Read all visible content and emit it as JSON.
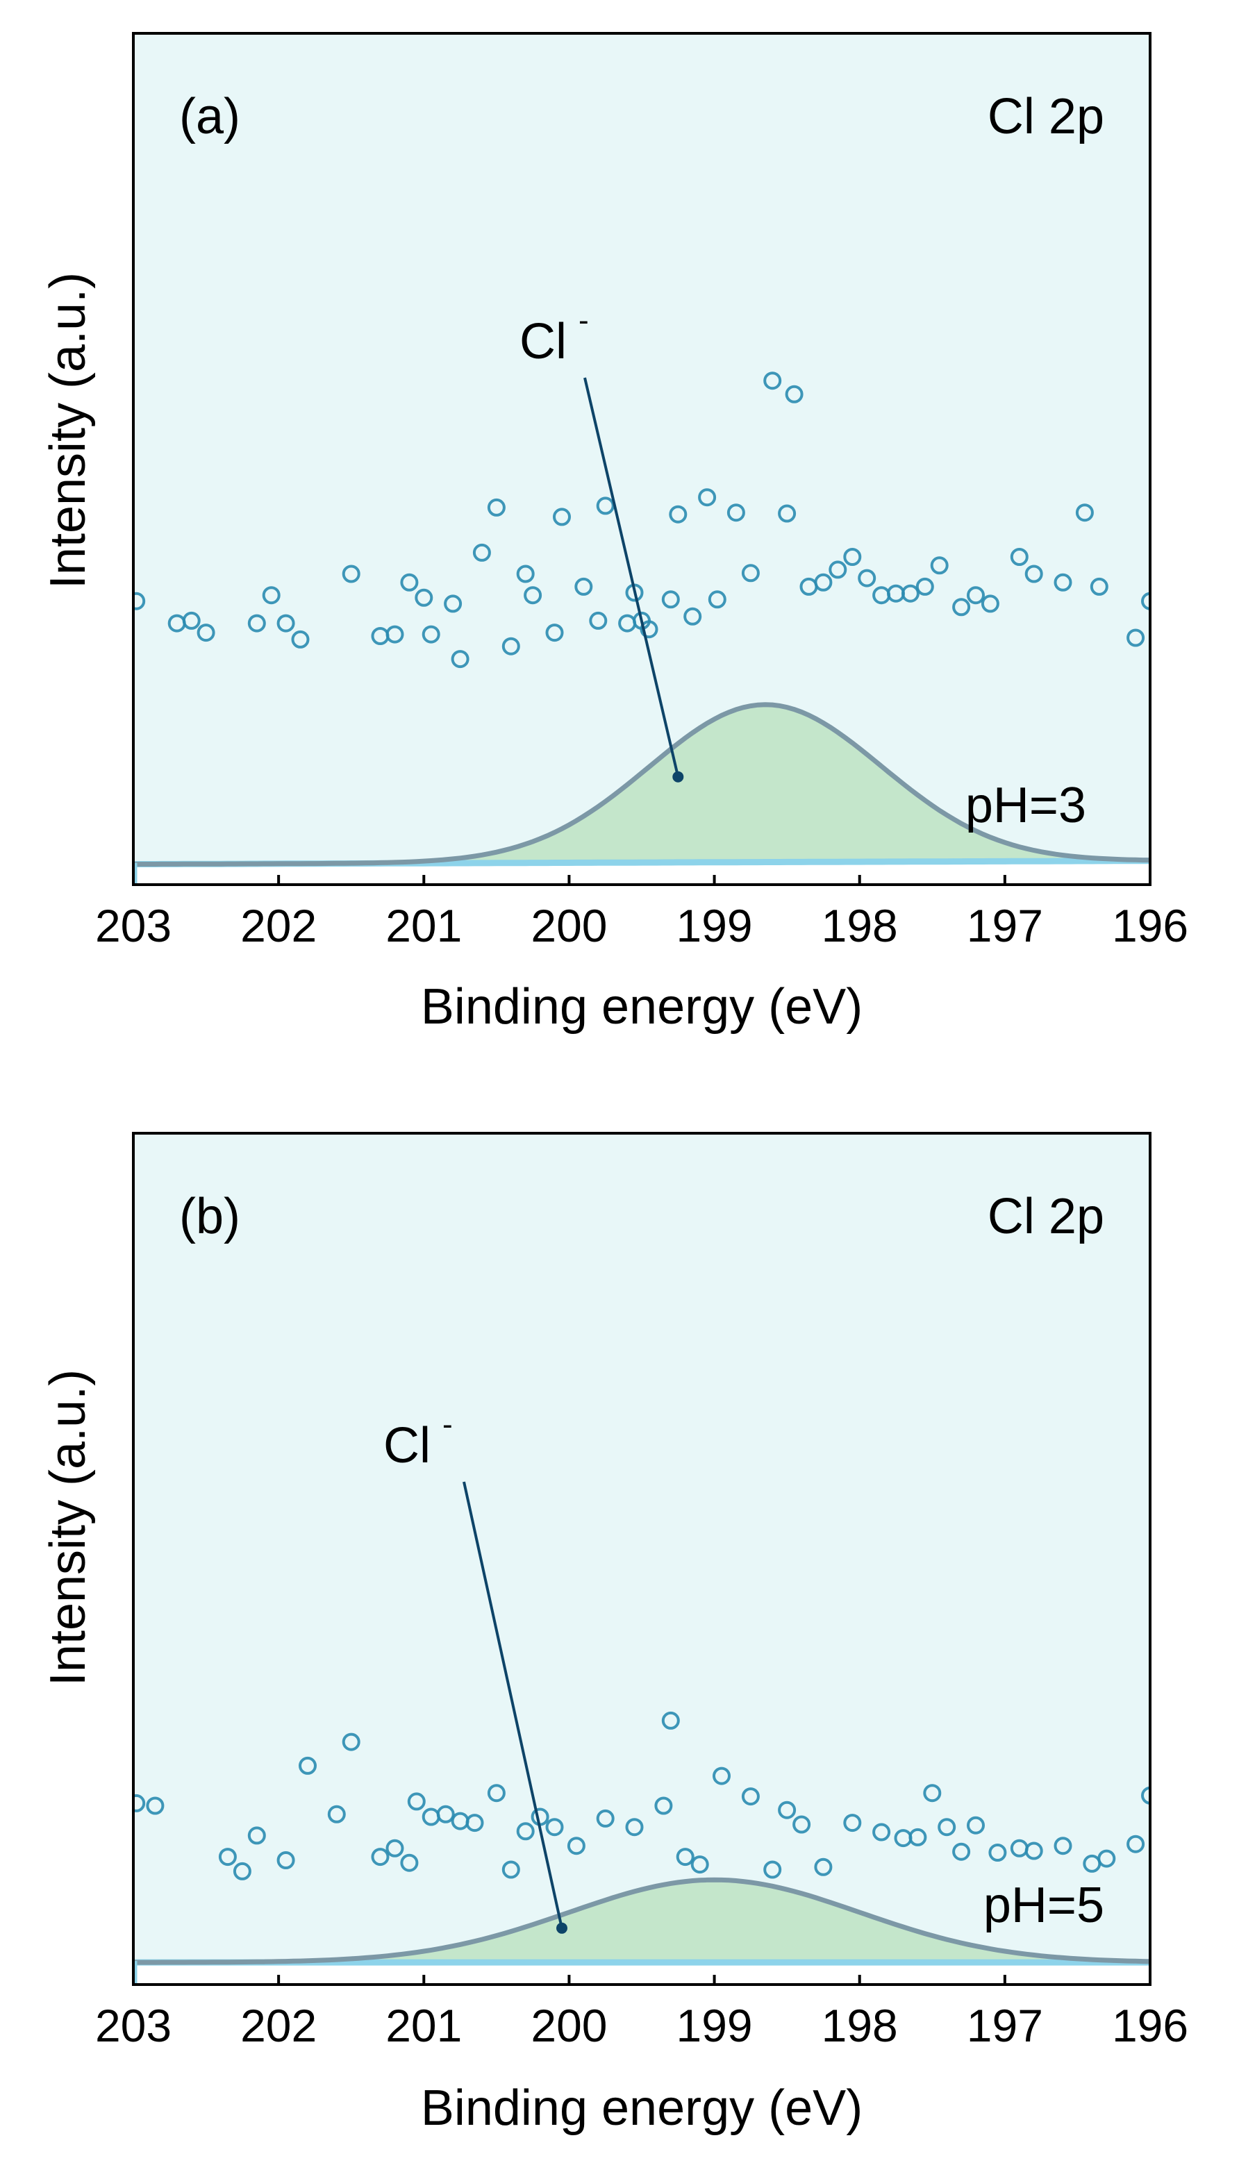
{
  "colors": {
    "panel_background": "#e8f7f8",
    "lower_background": "#ffffff",
    "point_stroke": "#2a8bb0",
    "envelope_line": "#7c98a6",
    "peak_fill": "#bde3c3",
    "baseline": "#8dd3ea",
    "pointer": "#0d4468",
    "axis": "#000000"
  },
  "chart_data": [
    {
      "type": "scatter",
      "panel_label": "(a)",
      "title": "Cl 2p",
      "condition": "pH=3",
      "peak_label": "Cl",
      "peak_label_superscript": "-",
      "xlabel": "Binding energy (eV)",
      "ylabel": "Intensity (a.u.)",
      "xlim": [
        203,
        196
      ],
      "x_reversed": true,
      "ylim": [
        0,
        1
      ],
      "xticks": [
        203,
        202,
        201,
        200,
        199,
        198,
        197,
        196
      ],
      "xtick_labels": [
        "203",
        "202",
        "201",
        "200",
        "199",
        "198",
        "197",
        "196"
      ],
      "grid": false,
      "y_tick_labels_shown": false,
      "peak": {
        "center": 198.65,
        "height": 0.185,
        "sigma": 0.8,
        "baseline_left": 0.024,
        "baseline_right": 0.028
      },
      "pointer_x": 199.25,
      "points": [
        [
          202.98,
          0.333
        ],
        [
          202.7,
          0.307
        ],
        [
          202.6,
          0.31
        ],
        [
          202.5,
          0.296
        ],
        [
          202.15,
          0.307
        ],
        [
          202.05,
          0.34
        ],
        [
          201.95,
          0.307
        ],
        [
          201.85,
          0.288
        ],
        [
          201.5,
          0.365
        ],
        [
          201.3,
          0.292
        ],
        [
          201.2,
          0.294
        ],
        [
          201.1,
          0.355
        ],
        [
          201.0,
          0.337
        ],
        [
          200.95,
          0.294
        ],
        [
          200.8,
          0.33
        ],
        [
          200.75,
          0.265
        ],
        [
          200.6,
          0.39
        ],
        [
          200.5,
          0.443
        ],
        [
          200.4,
          0.28
        ],
        [
          200.3,
          0.365
        ],
        [
          200.25,
          0.34
        ],
        [
          200.1,
          0.296
        ],
        [
          200.05,
          0.432
        ],
        [
          199.9,
          0.35
        ],
        [
          199.8,
          0.31
        ],
        [
          199.75,
          0.445
        ],
        [
          199.6,
          0.307
        ],
        [
          199.55,
          0.343
        ],
        [
          199.5,
          0.31
        ],
        [
          199.45,
          0.3
        ],
        [
          199.3,
          0.335
        ],
        [
          199.25,
          0.435
        ],
        [
          199.15,
          0.315
        ],
        [
          199.05,
          0.455
        ],
        [
          198.98,
          0.335
        ],
        [
          198.85,
          0.437
        ],
        [
          198.75,
          0.366
        ],
        [
          198.6,
          0.592
        ],
        [
          198.5,
          0.436
        ],
        [
          198.45,
          0.576
        ],
        [
          198.35,
          0.35
        ],
        [
          198.25,
          0.355
        ],
        [
          198.15,
          0.37
        ],
        [
          198.05,
          0.385
        ],
        [
          197.95,
          0.36
        ],
        [
          197.85,
          0.34
        ],
        [
          197.75,
          0.342
        ],
        [
          197.65,
          0.342
        ],
        [
          197.55,
          0.35
        ],
        [
          197.45,
          0.375
        ],
        [
          197.3,
          0.326
        ],
        [
          197.2,
          0.34
        ],
        [
          197.1,
          0.33
        ],
        [
          196.9,
          0.385
        ],
        [
          196.8,
          0.365
        ],
        [
          196.6,
          0.355
        ],
        [
          196.45,
          0.437
        ],
        [
          196.35,
          0.35
        ],
        [
          196.1,
          0.29
        ],
        [
          196.0,
          0.333
        ]
      ]
    },
    {
      "type": "scatter",
      "panel_label": "(b)",
      "title": "Cl 2p",
      "condition": "pH=5",
      "peak_label": "Cl",
      "peak_label_superscript": "-",
      "xlabel": "Binding energy (eV)",
      "ylabel": "Intensity (a.u.)",
      "xlim": [
        203,
        196
      ],
      "x_reversed": true,
      "ylim": [
        0,
        1
      ],
      "xticks": [
        203,
        202,
        201,
        200,
        199,
        198,
        197,
        196
      ],
      "xtick_labels": [
        "203",
        "202",
        "201",
        "200",
        "199",
        "198",
        "197",
        "196"
      ],
      "grid": false,
      "y_tick_labels_shown": false,
      "peak": {
        "center": 199.0,
        "height": 0.097,
        "sigma": 1.0,
        "baseline_left": 0.026,
        "baseline_right": 0.026
      },
      "pointer_x": 200.05,
      "points": [
        [
          202.98,
          0.213
        ],
        [
          202.85,
          0.21
        ],
        [
          202.35,
          0.15
        ],
        [
          202.25,
          0.133
        ],
        [
          202.15,
          0.175
        ],
        [
          201.95,
          0.146
        ],
        [
          201.8,
          0.257
        ],
        [
          201.5,
          0.285
        ],
        [
          201.6,
          0.2
        ],
        [
          201.3,
          0.15
        ],
        [
          201.2,
          0.16
        ],
        [
          201.1,
          0.143
        ],
        [
          201.05,
          0.215
        ],
        [
          200.95,
          0.197
        ],
        [
          200.85,
          0.2
        ],
        [
          200.75,
          0.192
        ],
        [
          200.65,
          0.19
        ],
        [
          200.5,
          0.225
        ],
        [
          200.4,
          0.135
        ],
        [
          200.3,
          0.18
        ],
        [
          200.2,
          0.197
        ],
        [
          200.1,
          0.185
        ],
        [
          199.95,
          0.163
        ],
        [
          199.75,
          0.195
        ],
        [
          199.55,
          0.185
        ],
        [
          199.35,
          0.21
        ],
        [
          199.3,
          0.31
        ],
        [
          199.2,
          0.15
        ],
        [
          199.1,
          0.141
        ],
        [
          198.95,
          0.245
        ],
        [
          198.75,
          0.221
        ],
        [
          198.6,
          0.135
        ],
        [
          198.5,
          0.205
        ],
        [
          198.4,
          0.188
        ],
        [
          198.25,
          0.138
        ],
        [
          198.05,
          0.19
        ],
        [
          197.85,
          0.179
        ],
        [
          197.7,
          0.172
        ],
        [
          197.6,
          0.173
        ],
        [
          197.5,
          0.225
        ],
        [
          197.4,
          0.185
        ],
        [
          197.3,
          0.156
        ],
        [
          197.2,
          0.187
        ],
        [
          197.05,
          0.155
        ],
        [
          196.9,
          0.16
        ],
        [
          196.8,
          0.157
        ],
        [
          196.6,
          0.163
        ],
        [
          196.4,
          0.142
        ],
        [
          196.3,
          0.148
        ],
        [
          196.1,
          0.165
        ],
        [
          196.0,
          0.222
        ]
      ]
    }
  ]
}
